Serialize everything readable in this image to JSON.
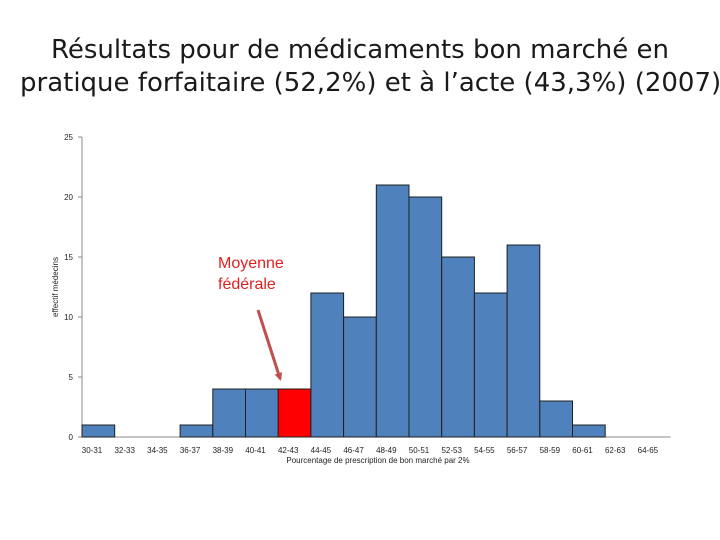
{
  "title_lines": [
    "Résultats pour  de médicaments bon marché en",
    "pratique forfaitaire (52,2%) et à l’acte (43,3%) (2007)"
  ],
  "chart_data": {
    "type": "bar",
    "title": "Résultats pour  de médicaments bon marché en pratique forfaitaire (52,2%) et à l’acte (43,3%) (2007)",
    "xlabel": "Pourcentage de prescription de bon marché par 2%",
    "ylabel": "effectif médecins",
    "categories": [
      "30-31",
      "32-33",
      "34-35",
      "36-37",
      "38-39",
      "40-41",
      "42-43",
      "44-45",
      "46-47",
      "48-49",
      "50-51",
      "52-53",
      "54-55",
      "56-57",
      "58-59",
      "60-61",
      "62-63",
      "64-65"
    ],
    "values": [
      1,
      0,
      0,
      1,
      4,
      4,
      4,
      12,
      10,
      21,
      20,
      15,
      12,
      16,
      3,
      1,
      0,
      0
    ],
    "ylim": [
      0,
      25
    ],
    "yticks": [
      "0",
      "5",
      "10",
      "15",
      "20",
      "25"
    ],
    "grid": false,
    "bar_color": "#4f81bd",
    "highlight_color": "#ff0000",
    "highlight_index": 6,
    "annotation": {
      "lines": [
        "Moyenne",
        "fédérale"
      ],
      "color": "#e02020",
      "arrow_color": "#c0504d",
      "target_index": 6
    }
  }
}
